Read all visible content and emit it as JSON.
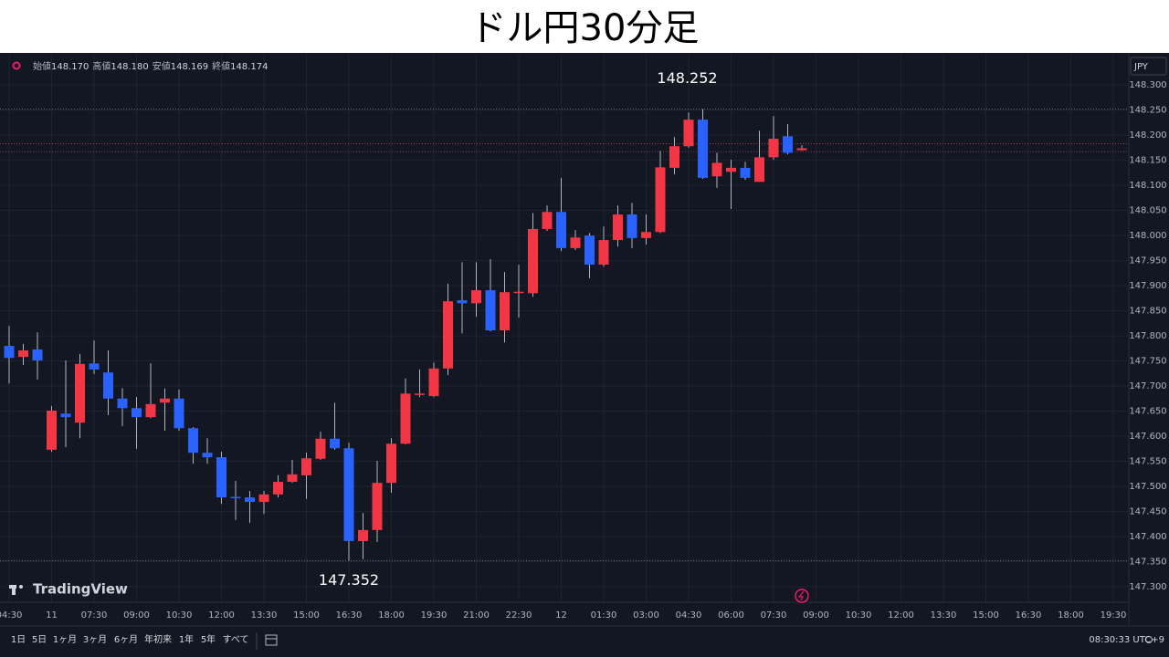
{
  "header": {
    "title": "ドル円30分足"
  },
  "watermark": "TradingView",
  "chart_data": {
    "type": "candlestick",
    "currency": "JPY",
    "legend": [
      {
        "name": "始値",
        "text": "148.170"
      },
      {
        "name": "高値",
        "text": "148.180"
      },
      {
        "name": "安値",
        "text": "148.169"
      },
      {
        "name": "終値",
        "text": "148.174"
      }
    ],
    "up_color": "#f23645",
    "down_color": "#2962ff",
    "grid": true,
    "categories": [
      "04:30",
      null,
      null,
      "11",
      null,
      null,
      "07:30",
      null,
      null,
      "09:00",
      null,
      null,
      "10:30",
      null,
      null,
      "12:00",
      null,
      null,
      "13:30",
      null,
      null,
      "15:00",
      null,
      null,
      "16:30",
      null,
      null,
      "18:00",
      null,
      null,
      "19:30",
      null,
      null,
      "21:00",
      null,
      null,
      "22:30",
      null,
      null,
      "12",
      null,
      null,
      "01:30",
      null,
      null,
      "03:00",
      null,
      null,
      "04:30",
      null,
      null,
      "06:00",
      null,
      null,
      "07:30",
      null,
      null,
      "09:00",
      null,
      null,
      "10:30",
      null,
      null,
      "12:00",
      null,
      null,
      "13:30",
      null,
      null,
      "15:00",
      null,
      null,
      "16:30",
      null,
      null,
      "18:00",
      null,
      null,
      "19:30"
    ],
    "open": [
      147.78,
      147.758,
      147.773,
      147.573,
      147.645,
      147.627,
      147.745,
      147.727,
      147.675,
      147.656,
      147.638,
      147.667,
      147.675,
      147.616,
      147.567,
      147.558,
      147.479,
      147.478,
      147.469,
      147.484,
      147.509,
      147.522,
      147.555,
      147.595,
      147.576,
      147.391,
      147.413,
      147.507,
      147.585,
      147.684,
      147.68,
      147.735,
      147.871,
      147.865,
      147.891,
      147.811,
      147.887,
      147.885,
      148.013,
      148.047,
      147.975,
      148.0,
      147.942,
      147.991,
      148.042,
      147.995,
      148.007,
      148.135,
      148.178,
      148.231,
      148.118,
      148.127,
      148.135,
      148.107,
      148.156,
      148.198,
      148.17,
      null,
      null,
      null,
      null,
      null,
      null,
      null,
      null,
      null,
      null,
      null,
      null,
      null,
      null,
      null,
      null,
      null,
      null,
      null,
      null,
      null,
      null
    ],
    "high": [
      147.82,
      147.784,
      147.807,
      147.66,
      147.751,
      147.764,
      147.791,
      147.771,
      147.696,
      147.678,
      147.745,
      147.695,
      147.693,
      147.618,
      147.596,
      147.569,
      147.511,
      147.491,
      147.491,
      147.522,
      147.553,
      147.567,
      147.609,
      147.667,
      147.587,
      147.447,
      147.551,
      147.596,
      147.715,
      147.733,
      147.747,
      147.904,
      147.947,
      147.947,
      147.953,
      147.927,
      147.942,
      148.045,
      148.06,
      148.115,
      148.011,
      148.005,
      148.018,
      148.06,
      148.065,
      148.042,
      148.169,
      148.196,
      148.245,
      148.252,
      148.165,
      148.151,
      148.147,
      148.209,
      148.238,
      148.222,
      148.18,
      null,
      null,
      null,
      null,
      null,
      null,
      null,
      null,
      null,
      null,
      null,
      null,
      null,
      null,
      null,
      null,
      null,
      null,
      null,
      null,
      null,
      null
    ],
    "low": [
      147.705,
      147.742,
      147.713,
      147.569,
      147.578,
      147.596,
      147.724,
      147.642,
      147.62,
      147.575,
      147.636,
      147.611,
      147.611,
      147.545,
      147.545,
      147.465,
      147.433,
      147.427,
      147.445,
      147.478,
      147.507,
      147.475,
      147.553,
      147.573,
      147.352,
      147.355,
      147.389,
      147.487,
      147.584,
      147.678,
      147.678,
      147.722,
      147.805,
      147.838,
      147.809,
      147.787,
      147.836,
      147.878,
      148.009,
      147.969,
      147.971,
      147.915,
      147.938,
      147.978,
      147.975,
      147.982,
      148.005,
      148.122,
      148.175,
      148.113,
      148.095,
      148.053,
      148.111,
      148.107,
      148.151,
      148.162,
      148.169,
      null,
      null,
      null,
      null,
      null,
      null,
      null,
      null,
      null,
      null,
      null,
      null,
      null,
      null,
      null,
      null,
      null,
      null,
      null,
      null,
      null,
      null
    ],
    "close": [
      147.756,
      147.771,
      147.751,
      147.651,
      147.638,
      147.744,
      147.733,
      147.675,
      147.656,
      147.638,
      147.664,
      147.675,
      147.616,
      147.567,
      147.558,
      147.478,
      147.477,
      147.469,
      147.484,
      147.509,
      147.524,
      147.556,
      147.595,
      147.576,
      147.391,
      147.413,
      147.507,
      147.585,
      147.685,
      147.685,
      147.735,
      147.869,
      147.865,
      147.891,
      147.811,
      147.887,
      147.888,
      148.013,
      148.047,
      147.975,
      147.996,
      147.942,
      147.991,
      148.042,
      147.995,
      148.007,
      148.136,
      148.178,
      148.231,
      148.115,
      148.145,
      148.135,
      148.115,
      148.156,
      148.193,
      148.165,
      148.174,
      null,
      null,
      null,
      null,
      null,
      null,
      null,
      null,
      null,
      null,
      null,
      null,
      null,
      null,
      null,
      null,
      null,
      null,
      null,
      null,
      null,
      null
    ],
    "annotations": [
      148.252,
      147.352
    ],
    "price_lines": [
      {
        "value": 148.183,
        "color": "#b2394a"
      },
      {
        "value": 148.167,
        "color": "#8a3a6a"
      }
    ],
    "ylim": [
      147.269,
      148.364
    ],
    "yticks": [
      {
        "value": 147.3,
        "label": "147.300"
      },
      {
        "value": 147.35,
        "label": "147.350"
      },
      {
        "value": 147.4,
        "label": "147.400"
      },
      {
        "value": 147.45,
        "label": "147.450"
      },
      {
        "value": 147.5,
        "label": "147.500"
      },
      {
        "value": 147.55,
        "label": "147.550"
      },
      {
        "value": 147.6,
        "label": "147.600"
      },
      {
        "value": 147.65,
        "label": "147.650"
      },
      {
        "value": 147.7,
        "label": "147.700"
      },
      {
        "value": 147.75,
        "label": "147.750"
      },
      {
        "value": 147.8,
        "label": "147.800"
      },
      {
        "value": 147.85,
        "label": "147.850"
      },
      {
        "value": 147.9,
        "label": "147.900"
      },
      {
        "value": 147.95,
        "label": "147.950"
      },
      {
        "value": 148.0,
        "label": "148.000"
      },
      {
        "value": 148.05,
        "label": "148.050"
      },
      {
        "value": 148.1,
        "label": "148.100"
      },
      {
        "value": 148.15,
        "label": "148.150"
      },
      {
        "value": 148.2,
        "label": "148.200"
      },
      {
        "value": 148.25,
        "label": "148.250"
      },
      {
        "value": 148.3,
        "label": "148.300"
      }
    ]
  },
  "toolbar": {
    "ranges": [
      "1日",
      "5日",
      "1ヶ月",
      "3ヶ月",
      "6ヶ月",
      "年初来",
      "1年",
      "5年",
      "すべて"
    ],
    "clock": "08:30:33 UTC+9"
  }
}
